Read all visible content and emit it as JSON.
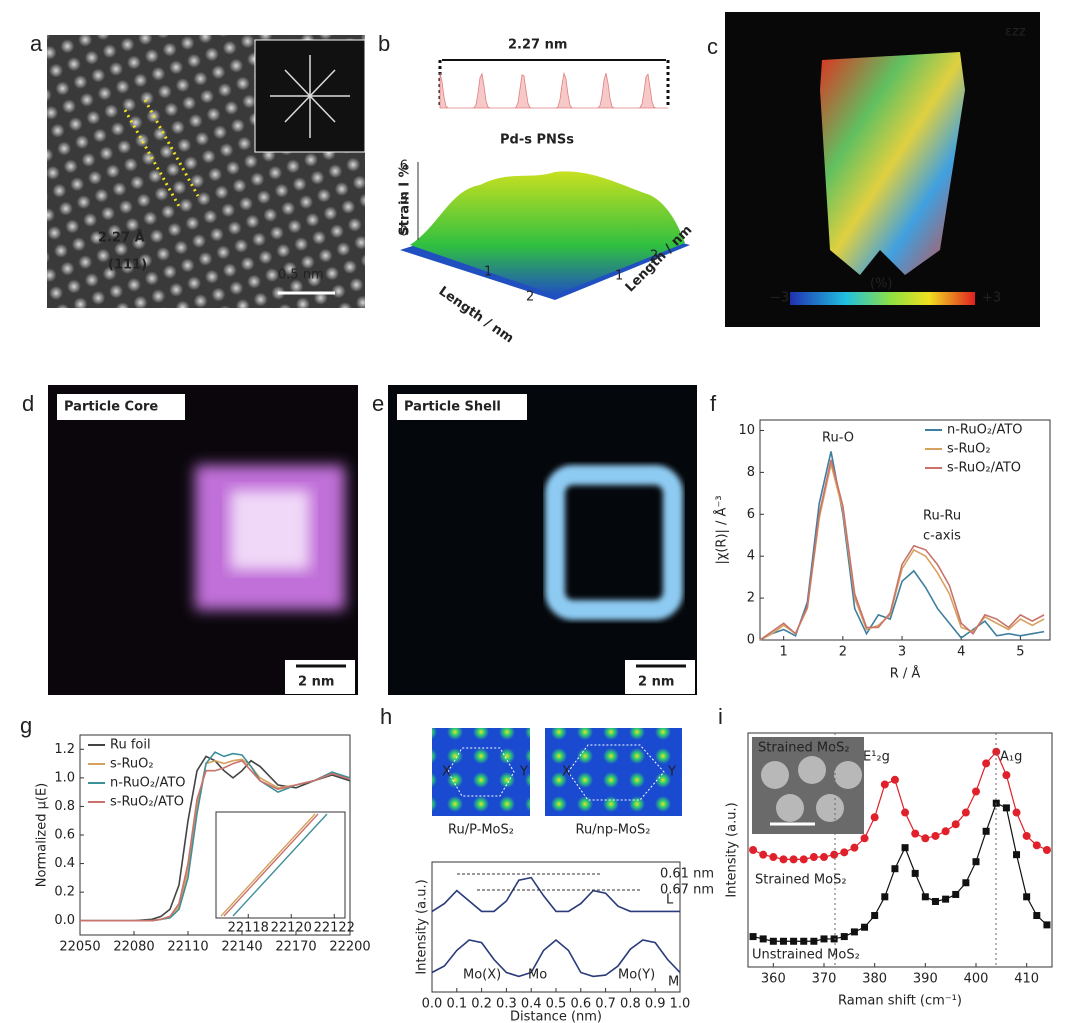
{
  "panel_labels": [
    "a",
    "b",
    "c",
    "d",
    "e",
    "f",
    "g",
    "h",
    "i"
  ],
  "panel_a": {
    "spacing": "2.27 Å",
    "plane": "(111)",
    "scale_bar": "0.5 nm"
  },
  "panel_b": {
    "distance": "2.27 nm",
    "title": "Pd-s PNSs",
    "z_label": "Strain I %",
    "x_label": "Length / nm",
    "y_label": "Length / nm",
    "z_ticks": [
      0,
      3,
      6
    ],
    "x_ticks": [
      1,
      2
    ],
    "y_ticks": [
      1,
      2
    ]
  },
  "panel_c": {
    "component": "εzz",
    "unit": "(%)",
    "scale_min": "−3",
    "scale_max": "+3"
  },
  "panel_d": {
    "title": "Particle Core",
    "scale_bar": "2 nm"
  },
  "panel_e": {
    "title": "Particle Shell",
    "scale_bar": "2 nm"
  },
  "chart_data": [
    {
      "type": "line",
      "xlabel": "R / Å",
      "ylabel": "|χ(R)| / Å⁻³",
      "xlim": [
        0.6,
        5.5
      ],
      "xticks": [
        1,
        2,
        3,
        4,
        5
      ],
      "ylim": [
        0,
        10.5
      ],
      "yticks": [
        0,
        2,
        4,
        6,
        8,
        10
      ],
      "legend": "upper right",
      "annotations": [
        "Ru-O",
        "Ru-Ru",
        "c-axis"
      ],
      "x": [
        0.6,
        0.8,
        1.0,
        1.2,
        1.4,
        1.6,
        1.8,
        2.0,
        2.2,
        2.4,
        2.6,
        2.8,
        3.0,
        3.2,
        3.4,
        3.6,
        3.8,
        4.0,
        4.2,
        4.4,
        4.6,
        4.8,
        5.0,
        5.2,
        5.4
      ],
      "series": [
        {
          "name": "n-RuO₂/ATO",
          "color": "#3d7f9f",
          "values": [
            0,
            0.3,
            0.5,
            0.2,
            1.8,
            6.5,
            9.0,
            6.0,
            1.5,
            0.3,
            1.2,
            1.0,
            2.8,
            3.3,
            2.5,
            1.5,
            0.8,
            0.1,
            0.5,
            0.9,
            0.2,
            0.3,
            0.2,
            0.3,
            0.4
          ]
        },
        {
          "name": "s-RuO₂",
          "color": "#d6a15e",
          "values": [
            0,
            0.3,
            0.7,
            0.3,
            1.5,
            5.8,
            8.4,
            6.2,
            2.0,
            0.5,
            0.7,
            1.2,
            3.4,
            4.3,
            4.0,
            3.2,
            2.2,
            0.6,
            0.4,
            1.1,
            0.8,
            0.5,
            1.0,
            0.7,
            1.0
          ]
        },
        {
          "name": "s-RuO₂/ATO",
          "color": "#c9736c",
          "values": [
            0,
            0.4,
            0.8,
            0.3,
            1.6,
            6.0,
            8.6,
            6.4,
            2.2,
            0.6,
            0.6,
            1.3,
            3.6,
            4.5,
            4.3,
            3.6,
            2.6,
            0.8,
            0.3,
            1.2,
            1.0,
            0.6,
            1.2,
            0.9,
            1.2
          ]
        }
      ]
    },
    {
      "type": "line",
      "ylabel": "Normalized μ(E)",
      "xlim": [
        22050,
        22200
      ],
      "xticks": [
        22050,
        22080,
        22110,
        22140,
        22170,
        22200
      ],
      "ylim": [
        -0.1,
        1.3
      ],
      "yticks": [
        {
          "value": 0,
          "label": "0.0"
        },
        0.2,
        0.4,
        0.6,
        0.8,
        {
          "value": 1,
          "label": "1.0"
        },
        1.2
      ],
      "legend": "upper left",
      "inset": {
        "xlim": [
          22116.5,
          22122.5
        ],
        "xticks": [
          22118,
          22120,
          22122
        ]
      },
      "x": [
        22050,
        22070,
        22080,
        22090,
        22095,
        22100,
        22105,
        22110,
        22115,
        22120,
        22125,
        22130,
        22135,
        22140,
        22145,
        22150,
        22160,
        22170,
        22180,
        22190,
        22200
      ],
      "series": [
        {
          "name": "Ru foil",
          "color": "#444444",
          "values": [
            0,
            0,
            0,
            0.01,
            0.03,
            0.08,
            0.25,
            0.7,
            1.05,
            1.15,
            1.12,
            1.05,
            1.0,
            1.05,
            1.12,
            1.08,
            0.95,
            0.93,
            0.98,
            1.02,
            0.98
          ]
        },
        {
          "name": "s-RuO₂",
          "color": "#d6a15e",
          "values": [
            0,
            0,
            0,
            0,
            0.01,
            0.03,
            0.1,
            0.35,
            0.8,
            1.1,
            1.12,
            1.1,
            1.12,
            1.13,
            1.08,
            1.0,
            0.93,
            0.95,
            0.98,
            1.03,
            1.0
          ]
        },
        {
          "name": "n-RuO₂/ATO",
          "color": "#3d8f9a",
          "values": [
            0,
            0,
            0,
            0,
            0.01,
            0.02,
            0.08,
            0.3,
            0.75,
            1.1,
            1.18,
            1.15,
            1.17,
            1.16,
            1.08,
            0.98,
            0.9,
            0.95,
            0.98,
            1.04,
            1.0
          ]
        },
        {
          "name": "s-RuO₂/ATO",
          "color": "#c9736c",
          "values": [
            0,
            0,
            0,
            0,
            0.01,
            0.03,
            0.12,
            0.4,
            0.85,
            1.05,
            1.05,
            1.07,
            1.1,
            1.12,
            1.05,
            0.98,
            0.92,
            0.95,
            0.98,
            1.03,
            0.99
          ]
        }
      ]
    },
    {
      "type": "line",
      "xlabel": "Distance (nm)",
      "ylabel": "Intensity (a.u.)",
      "xlim": [
        0,
        1
      ],
      "xticks": [
        {
          "value": 0,
          "label": "0.0"
        },
        0.1,
        0.2,
        0.3,
        0.4,
        0.5,
        0.6,
        0.7,
        0.8,
        0.9,
        {
          "value": 1,
          "label": "1.0"
        }
      ],
      "ylim": [
        0,
        1
      ],
      "legend": "inline",
      "image_captions": [
        "Ru/P-MoS₂",
        "Ru/np-MoS₂"
      ],
      "site_labels": [
        "X",
        "Y",
        "X",
        "Y"
      ],
      "annotations": [
        "0.61 nm",
        "0.67 nm",
        "Mo(X)",
        "Mo",
        "Mo(Y)"
      ],
      "x": [
        0,
        0.05,
        0.1,
        0.15,
        0.2,
        0.25,
        0.3,
        0.35,
        0.4,
        0.45,
        0.5,
        0.55,
        0.6,
        0.65,
        0.7,
        0.75,
        0.8,
        0.85,
        0.9,
        0.95,
        1.0
      ],
      "series": [
        {
          "name": "L",
          "color": "#2a3a7a",
          "values": [
            0.62,
            0.68,
            0.78,
            0.7,
            0.62,
            0.62,
            0.7,
            0.86,
            0.88,
            0.74,
            0.62,
            0.62,
            0.68,
            0.78,
            0.76,
            0.66,
            0.62,
            0.62,
            0.62,
            0.62,
            0.62
          ]
        },
        {
          "name": "M",
          "color": "#2a3a7a",
          "values": [
            0.15,
            0.2,
            0.32,
            0.4,
            0.38,
            0.25,
            0.15,
            0.12,
            0.15,
            0.32,
            0.4,
            0.32,
            0.15,
            0.12,
            0.13,
            0.2,
            0.33,
            0.4,
            0.38,
            0.25,
            0.15
          ]
        }
      ]
    },
    {
      "type": "line",
      "xlabel": "Raman shift (cm⁻¹)",
      "ylabel": "Intensity (a.u.)",
      "xlim": [
        355,
        415
      ],
      "xticks": [
        360,
        370,
        380,
        390,
        400,
        410
      ],
      "ylim": [
        0,
        1
      ],
      "legend": "inline",
      "inset_label": "Strained MoS₂",
      "annotations": [
        "E¹₂g",
        "A₁g"
      ],
      "x": [
        356,
        358,
        360,
        362,
        364,
        366,
        368,
        370,
        372,
        374,
        376,
        378,
        380,
        382,
        384,
        386,
        388,
        390,
        392,
        394,
        396,
        398,
        400,
        402,
        404,
        406,
        408,
        410,
        412,
        414
      ],
      "series": [
        {
          "name": "Strained MoS₂",
          "color": "#e0202a",
          "marker": "circle",
          "values": [
            0.5,
            0.48,
            0.47,
            0.46,
            0.46,
            0.46,
            0.47,
            0.47,
            0.48,
            0.49,
            0.51,
            0.55,
            0.64,
            0.78,
            0.8,
            0.66,
            0.57,
            0.55,
            0.56,
            0.58,
            0.61,
            0.66,
            0.75,
            0.87,
            0.92,
            0.82,
            0.66,
            0.56,
            0.52,
            0.5
          ]
        },
        {
          "name": "Unstrained MoS₂",
          "color": "#111111",
          "marker": "square",
          "values": [
            0.13,
            0.12,
            0.11,
            0.11,
            0.11,
            0.11,
            0.11,
            0.12,
            0.12,
            0.13,
            0.15,
            0.17,
            0.22,
            0.3,
            0.42,
            0.51,
            0.4,
            0.3,
            0.28,
            0.29,
            0.31,
            0.36,
            0.45,
            0.58,
            0.7,
            0.68,
            0.48,
            0.3,
            0.22,
            0.18
          ]
        }
      ]
    }
  ]
}
